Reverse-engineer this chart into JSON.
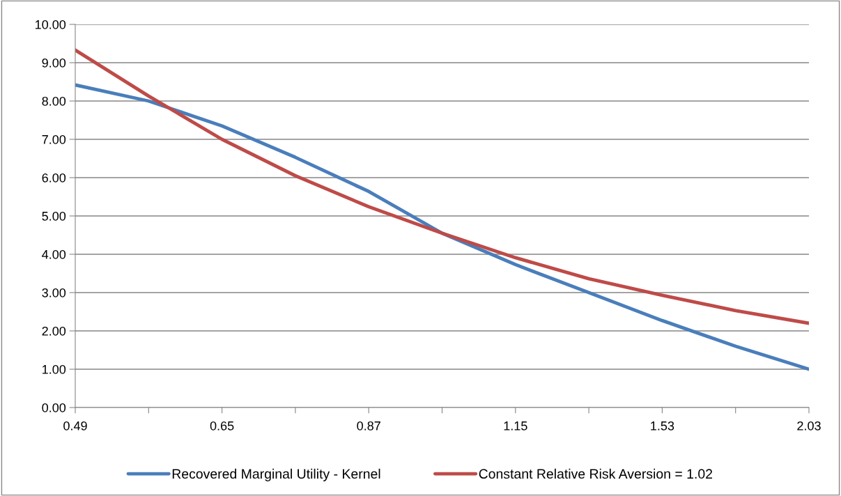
{
  "chart_data": {
    "type": "line",
    "categories": [
      "0.49",
      null,
      "0.65",
      null,
      "0.87",
      null,
      "1.15",
      null,
      "1.53",
      null,
      "2.03"
    ],
    "series": [
      {
        "name": "Recovered Marginal Utility - Kernel",
        "color": "#4a7ebb",
        "values": [
          8.42,
          8.0,
          7.35,
          6.53,
          5.64,
          4.55,
          3.73,
          3.0,
          2.27,
          1.6,
          1.0
        ]
      },
      {
        "name": "Constant Relative Risk Aversion = 1.02",
        "color": "#be4b48",
        "values": [
          9.33,
          8.13,
          7.0,
          6.05,
          5.24,
          4.55,
          3.91,
          3.36,
          2.93,
          2.53,
          2.2
        ]
      }
    ],
    "ylim": [
      0,
      10
    ],
    "yticks": [
      {
        "value": 0,
        "label": "0.00"
      },
      {
        "value": 1,
        "label": "1.00"
      },
      {
        "value": 2,
        "label": "2.00"
      },
      {
        "value": 3,
        "label": "3.00"
      },
      {
        "value": 4,
        "label": "4.00"
      },
      {
        "value": 5,
        "label": "5.00"
      },
      {
        "value": 6,
        "label": "6.00"
      },
      {
        "value": 7,
        "label": "7.00"
      },
      {
        "value": 8,
        "label": "8.00"
      },
      {
        "value": 9,
        "label": "9.00"
      },
      {
        "value": 10,
        "label": "10.00"
      }
    ],
    "grid": "y",
    "legend": "bottom",
    "marker": "none",
    "line_style": "solid"
  }
}
